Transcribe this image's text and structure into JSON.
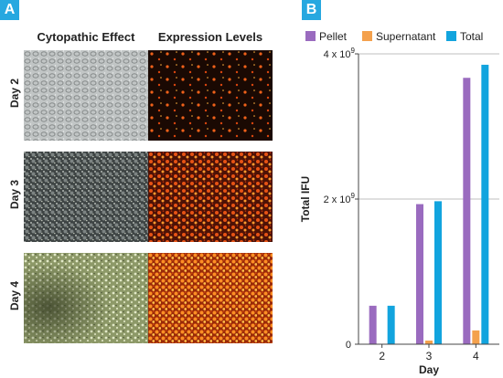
{
  "panel_a": {
    "badge": "A",
    "columns": [
      "Cytopathic Effect",
      "Expression Levels"
    ],
    "rows": [
      "Day 2",
      "Day 3",
      "Day 4"
    ]
  },
  "panel_b": {
    "badge": "B"
  },
  "chart_data": {
    "type": "bar",
    "categories": [
      "2",
      "3",
      "4"
    ],
    "series": [
      {
        "name": "Pellet",
        "color": "#9a6bbf",
        "values": [
          0.53,
          1.93,
          3.67
        ]
      },
      {
        "name": "Supernatant",
        "color": "#f4a14d",
        "values": [
          0.0,
          0.05,
          0.19
        ]
      },
      {
        "name": "Total",
        "color": "#12a4de",
        "values": [
          0.53,
          1.97,
          3.85
        ]
      }
    ],
    "xlabel": "Day",
    "ylabel": "Total IFU",
    "ylim": [
      0,
      4
    ],
    "y_unit_multiplier": "10^9",
    "yticks": [
      {
        "value": 0,
        "label": "0"
      },
      {
        "value": 2,
        "label": "2 x 10",
        "exp": "9"
      },
      {
        "value": 4,
        "label": "4 x 10",
        "exp": "9"
      }
    ],
    "grid": true,
    "legend_position": "top"
  }
}
